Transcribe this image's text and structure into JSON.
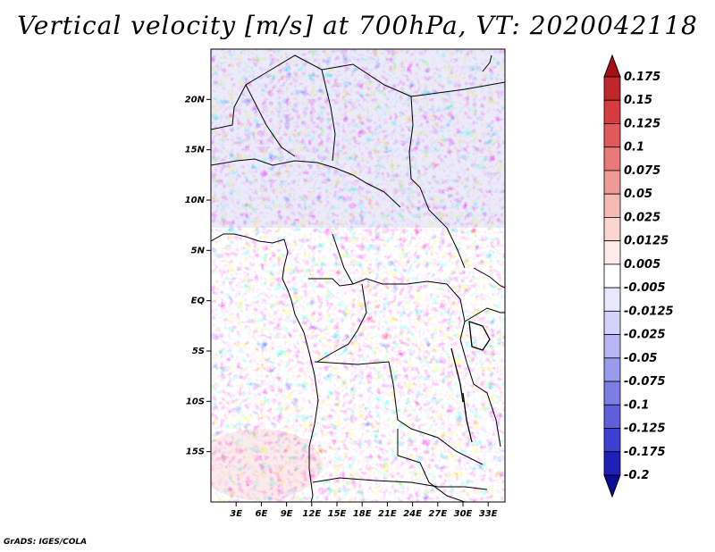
{
  "title": "Vertical velocity [m/s] at 700hPa, VT: 2020042118",
  "credit": "GrADS: IGES/COLA",
  "map": {
    "lon_range": [
      0,
      35
    ],
    "lat_range": [
      -20,
      25
    ],
    "lat_ticks": [
      "20N",
      "15N",
      "10N",
      "5N",
      "EQ",
      "5S",
      "10S",
      "15S"
    ],
    "lat_values": [
      20,
      15,
      10,
      5,
      0,
      -5,
      -10,
      -15
    ],
    "lon_ticks": [
      "3E",
      "6E",
      "9E",
      "12E",
      "15E",
      "18E",
      "21E",
      "24E",
      "27E",
      "30E",
      "33E"
    ],
    "lon_values": [
      3,
      6,
      9,
      12,
      15,
      18,
      21,
      24,
      27,
      30,
      33
    ]
  },
  "colorbar": {
    "levels": [
      "0.175",
      "0.15",
      "0.125",
      "0.1",
      "0.075",
      "0.05",
      "0.025",
      "0.0125",
      "0.005",
      "-0.005",
      "-0.0125",
      "-0.025",
      "-0.05",
      "-0.075",
      "-0.1",
      "-0.125",
      "-0.175",
      "-0.2"
    ],
    "colors": [
      "#a50f15",
      "#c0272d",
      "#d73a3f",
      "#e05a5c",
      "#e87a78",
      "#f09a96",
      "#f6b9b4",
      "#fbd5d1",
      "#fdebe9",
      "#ffffff",
      "#e9e9fd",
      "#d2d2fa",
      "#b7b7f4",
      "#9b9bee",
      "#7d7de6",
      "#5f5fdd",
      "#3e3ed0",
      "#2020b8",
      "#0c0c96"
    ]
  }
}
